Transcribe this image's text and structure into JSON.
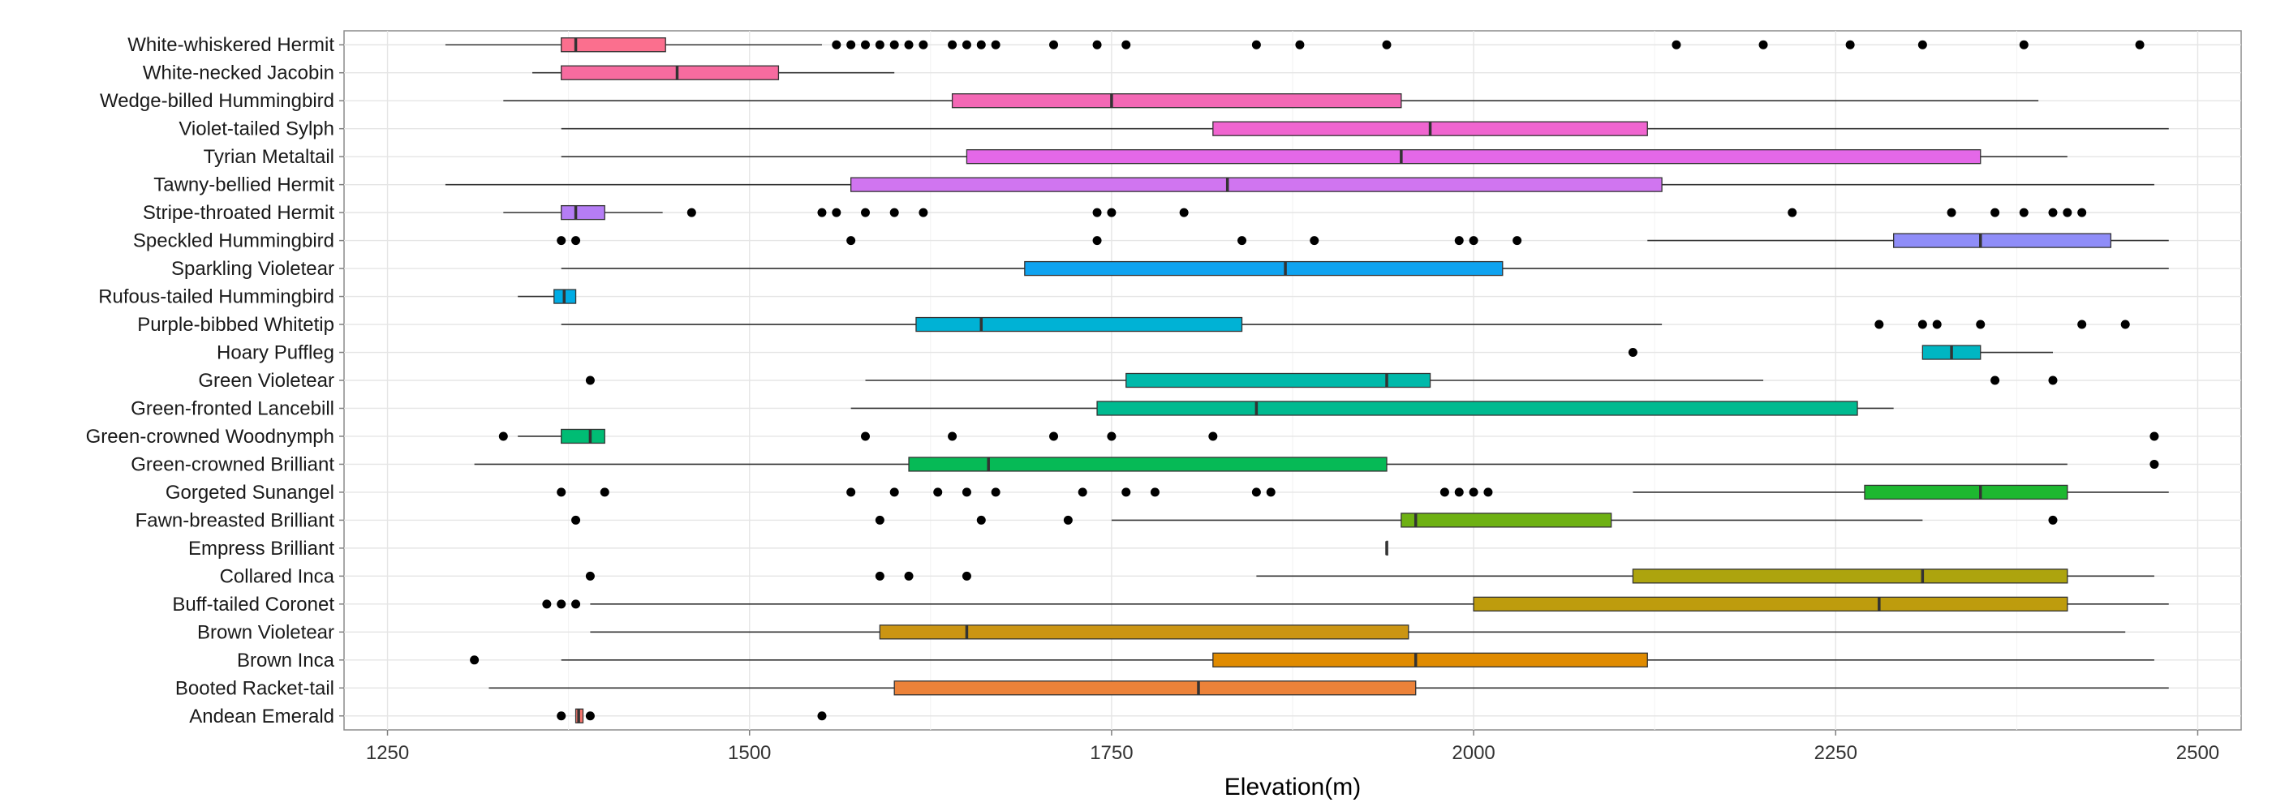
{
  "chart_data": {
    "type": "boxplot",
    "orientation": "horizontal",
    "xlabel": "Elevation(m)",
    "xlim": [
      1220,
      2530
    ],
    "xticks": [
      1250,
      1500,
      1750,
      2000,
      2250,
      2500
    ],
    "grid": true,
    "legend": "none",
    "categories": [
      {
        "name": "White-whiskered Hermit",
        "color": "#FB6F8E",
        "whisker_low": 1290,
        "q1": 1370,
        "median": 1380,
        "q3": 1442,
        "whisker_high": 1550,
        "outliers": [
          1560,
          1570,
          1580,
          1590,
          1600,
          1610,
          1620,
          1640,
          1650,
          1660,
          1670,
          1710,
          1740,
          1760,
          1850,
          1880,
          1940,
          2140,
          2200,
          2260,
          2310,
          2380,
          2460
        ]
      },
      {
        "name": "White-necked Jacobin",
        "color": "#F76B9F",
        "whisker_low": 1350,
        "q1": 1370,
        "median": 1450,
        "q3": 1520,
        "whisker_high": 1600,
        "outliers": []
      },
      {
        "name": "Wedge-billed Hummingbird",
        "color": "#F368B5",
        "whisker_low": 1330,
        "q1": 1640,
        "median": 1750,
        "q3": 1950,
        "whisker_high": 2390,
        "outliers": []
      },
      {
        "name": "Violet-tailed Sylph",
        "color": "#F065D0",
        "whisker_low": 1370,
        "q1": 1820,
        "median": 1970,
        "q3": 2120,
        "whisker_high": 2480,
        "outliers": []
      },
      {
        "name": "Tyrian Metaltail",
        "color": "#E468E8",
        "whisker_low": 1370,
        "q1": 1650,
        "median": 1950,
        "q3": 2350,
        "whisker_high": 2410,
        "outliers": []
      },
      {
        "name": "Tawny-bellied Hermit",
        "color": "#D075F0",
        "whisker_low": 1290,
        "q1": 1570,
        "median": 1830,
        "q3": 2130,
        "whisker_high": 2470,
        "outliers": []
      },
      {
        "name": "Stripe-throated Hermit",
        "color": "#B57DF5",
        "whisker_low": 1330,
        "q1": 1370,
        "median": 1380,
        "q3": 1400,
        "whisker_high": 1440,
        "outliers": [
          1460,
          1550,
          1560,
          1580,
          1600,
          1620,
          1740,
          1750,
          1800,
          2220,
          2330,
          2360,
          2380,
          2400,
          2410,
          2420
        ]
      },
      {
        "name": "Speckled Hummingbird",
        "color": "#8F8DF8",
        "whisker_low": 2120,
        "q1": 2290,
        "median": 2350,
        "q3": 2440,
        "whisker_high": 2480,
        "outliers": [
          1370,
          1380,
          1570,
          1740,
          1840,
          1890,
          1990,
          2000,
          2030
        ]
      },
      {
        "name": "Sparkling Violetear",
        "color": "#0FA3F0",
        "whisker_low": 1370,
        "q1": 1690,
        "median": 1870,
        "q3": 2020,
        "whisker_high": 2480,
        "outliers": []
      },
      {
        "name": "Rufous-tailed Hummingbird",
        "color": "#00ACE4",
        "whisker_low": 1340,
        "q1": 1365,
        "median": 1372,
        "q3": 1380,
        "whisker_high": 1380,
        "outliers": []
      },
      {
        "name": "Purple-bibbed Whitetip",
        "color": "#00B2D5",
        "whisker_low": 1370,
        "q1": 1615,
        "median": 1660,
        "q3": 1840,
        "whisker_high": 2130,
        "outliers": [
          2280,
          2310,
          2320,
          2350,
          2420,
          2450
        ]
      },
      {
        "name": "Hoary Puffleg",
        "color": "#00B6C2",
        "whisker_low": 2310,
        "q1": 2310,
        "median": 2330,
        "q3": 2350,
        "whisker_high": 2400,
        "outliers": [
          2110
        ]
      },
      {
        "name": "Green Violetear",
        "color": "#00B9AA",
        "whisker_low": 1580,
        "q1": 1760,
        "median": 1940,
        "q3": 1970,
        "whisker_high": 2200,
        "outliers": [
          1390,
          2360,
          2400
        ]
      },
      {
        "name": "Green-fronted Lancebill",
        "color": "#00BA90",
        "whisker_low": 1570,
        "q1": 1740,
        "median": 1850,
        "q3": 2265,
        "whisker_high": 2290,
        "outliers": []
      },
      {
        "name": "Green-crowned Woodnymph",
        "color": "#00BC74",
        "whisker_low": 1340,
        "q1": 1370,
        "median": 1390,
        "q3": 1400,
        "whisker_high": 1400,
        "outliers": [
          1330,
          1580,
          1640,
          1710,
          1750,
          1820,
          2470
        ]
      },
      {
        "name": "Green-crowned Brilliant",
        "color": "#06BA56",
        "whisker_low": 1310,
        "q1": 1610,
        "median": 1665,
        "q3": 1940,
        "whisker_high": 2410,
        "outliers": [
          2470
        ]
      },
      {
        "name": "Gorgeted Sunangel",
        "color": "#1DB830",
        "whisker_low": 2110,
        "q1": 2270,
        "median": 2350,
        "q3": 2410,
        "whisker_high": 2480,
        "outliers": [
          1370,
          1400,
          1570,
          1600,
          1630,
          1650,
          1670,
          1730,
          1760,
          1780,
          1850,
          1860,
          1980,
          1990,
          2000,
          2010
        ]
      },
      {
        "name": "Fawn-breasted Brilliant",
        "color": "#6EB113",
        "whisker_low": 1750,
        "q1": 1950,
        "median": 1960,
        "q3": 2095,
        "whisker_high": 2310,
        "outliers": [
          1380,
          1590,
          1660,
          1720,
          2400
        ]
      },
      {
        "name": "Empress Brilliant",
        "color": "#94AB0E",
        "whisker_low": 1940,
        "q1": 1940,
        "median": 1940,
        "q3": 1940,
        "whisker_high": 1940,
        "outliers": []
      },
      {
        "name": "Collared Inca",
        "color": "#ADA40E",
        "whisker_low": 1850,
        "q1": 2110,
        "median": 2310,
        "q3": 2410,
        "whisker_high": 2470,
        "outliers": [
          1390,
          1590,
          1610,
          1650
        ]
      },
      {
        "name": "Buff-tailed Coronet",
        "color": "#BE9C0D",
        "whisker_low": 1390,
        "q1": 2000,
        "median": 2280,
        "q3": 2410,
        "whisker_high": 2480,
        "outliers": [
          1360,
          1370,
          1380
        ]
      },
      {
        "name": "Brown Violetear",
        "color": "#CB9513",
        "whisker_low": 1390,
        "q1": 1590,
        "median": 1650,
        "q3": 1955,
        "whisker_high": 2450,
        "outliers": []
      },
      {
        "name": "Brown Inca",
        "color": "#E08B00",
        "whisker_low": 1370,
        "q1": 1820,
        "median": 1960,
        "q3": 2120,
        "whisker_high": 2470,
        "outliers": [
          1310
        ]
      },
      {
        "name": "Booted Racket-tail",
        "color": "#EC8239",
        "whisker_low": 1320,
        "q1": 1600,
        "median": 1810,
        "q3": 1960,
        "whisker_high": 2480,
        "outliers": []
      },
      {
        "name": "Andean Emerald",
        "color": "#F8766D",
        "whisker_low": 1380,
        "q1": 1380,
        "median": 1382,
        "q3": 1385,
        "whisker_high": 1385,
        "outliers": [
          1370,
          1390,
          1550
        ]
      }
    ]
  }
}
